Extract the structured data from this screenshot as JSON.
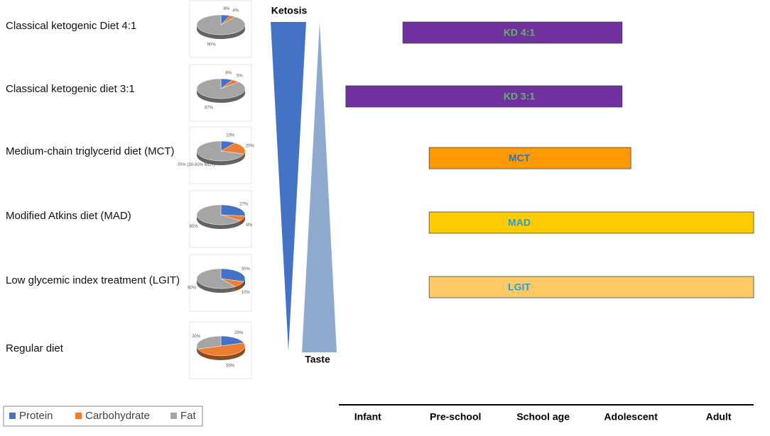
{
  "diets": [
    {
      "name": "Classical ketogenic Diet 4:1",
      "pie": [
        6,
        4,
        90
      ],
      "pie_labels": [
        "6%",
        "4%",
        "90%"
      ],
      "bar": {
        "label": "KD 4:1",
        "start": 0.4,
        "end": 2.9,
        "color": "#7030a0",
        "text_color": "#5cb85c"
      }
    },
    {
      "name": "Classical ketogenic diet 3:1",
      "pie": [
        8,
        5,
        87
      ],
      "pie_labels": [
        "8%",
        "5%",
        "87%"
      ],
      "bar": {
        "label": "KD 3:1",
        "start": -0.25,
        "end": 2.9,
        "color": "#7030a0",
        "text_color": "#5cb85c"
      }
    },
    {
      "name": "Medium-chain triglycerid diet (MCT)",
      "pie": [
        10,
        20,
        70
      ],
      "pie_labels": [
        "10%",
        "20%",
        "70% (30-50% MCT)"
      ],
      "bar": {
        "label": "MCT",
        "start": 0.7,
        "end": 3.0,
        "color": "#ff9900",
        "text_color": "#2e75b6"
      }
    },
    {
      "name": "Modified Atkins diet (MAD)",
      "pie": [
        27,
        8,
        65
      ],
      "pie_labels": [
        "27%",
        "8%",
        "65%"
      ],
      "bar": {
        "label": "MAD",
        "start": 0.7,
        "end": 4.4,
        "color": "#ffcc00",
        "text_color": "#2e9bd6"
      }
    },
    {
      "name": "Low glycemic index treatment (LGIT)",
      "pie": [
        30,
        10,
        60
      ],
      "pie_labels": [
        "30%",
        "10%",
        "60%"
      ],
      "bar": {
        "label": "LGIT",
        "start": 0.7,
        "end": 4.4,
        "color": "#ffc966",
        "text_color": "#2e9bd6"
      }
    },
    {
      "name": "Regular diet",
      "pie": [
        20,
        50,
        30
      ],
      "pie_labels": [
        "20%",
        "50%",
        "30%"
      ]
    }
  ],
  "legend": [
    "Protein",
    "Carbohydrate",
    "Fat"
  ],
  "colors": [
    "#4472c4",
    "#ed7d31",
    "#a5a5a5"
  ],
  "gradient": {
    "top": "Ketosis",
    "bottom": "Taste"
  },
  "timeline": {
    "categories": [
      "Infant",
      "Pre-school",
      "School age",
      "Adolescent",
      "Adult"
    ],
    "xlim": [
      -0.33,
      4.4
    ]
  }
}
